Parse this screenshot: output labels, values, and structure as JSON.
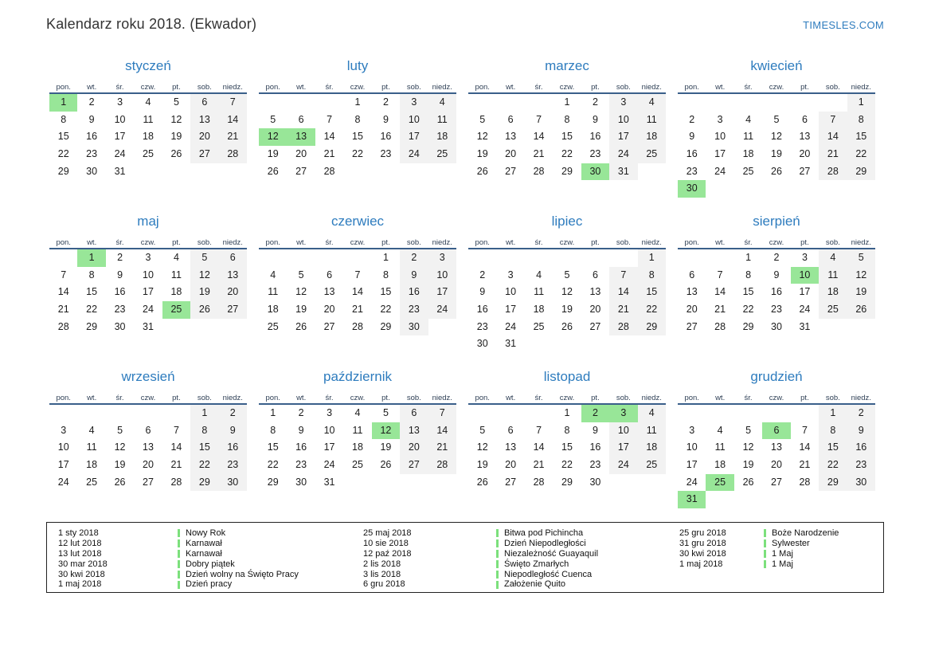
{
  "page": {
    "title": "Kalendarz roku 2018. (Ekwador)",
    "site_link": "TIMESLES.COM"
  },
  "colors": {
    "accent_blue": "#2e7cbe",
    "header_line_blue": "#3a5f8a",
    "weekday_text": "#2e3f55",
    "day_text": "#1c1c1c",
    "weekend_gray": "#f2f2f2",
    "holiday_green": "#98e698",
    "legend_bar_green": "#7ce07c"
  },
  "weekdays": [
    "pon.",
    "wt.",
    "śr.",
    "czw.",
    "pt.",
    "sob.",
    "niedz."
  ],
  "months": [
    {
      "name": "styczeń",
      "key": "january",
      "weeks": [
        [
          1,
          2,
          3,
          4,
          5,
          6,
          7
        ],
        [
          8,
          9,
          10,
          11,
          12,
          13,
          14
        ],
        [
          15,
          16,
          17,
          18,
          19,
          20,
          21
        ],
        [
          22,
          23,
          24,
          25,
          26,
          27,
          28
        ],
        [
          29,
          30,
          31,
          "",
          "",
          "",
          ""
        ]
      ],
      "highlighted": [
        1
      ]
    },
    {
      "name": "luty",
      "key": "february",
      "weeks": [
        [
          "",
          "",
          "",
          1,
          2,
          3,
          4
        ],
        [
          5,
          6,
          7,
          8,
          9,
          10,
          11
        ],
        [
          12,
          13,
          14,
          15,
          16,
          17,
          18
        ],
        [
          19,
          20,
          21,
          22,
          23,
          24,
          25
        ],
        [
          26,
          27,
          28,
          "",
          "",
          "",
          ""
        ]
      ],
      "highlighted": [
        12,
        13
      ]
    },
    {
      "name": "marzec",
      "key": "march",
      "weeks": [
        [
          "",
          "",
          "",
          1,
          2,
          3,
          4
        ],
        [
          5,
          6,
          7,
          8,
          9,
          10,
          11
        ],
        [
          12,
          13,
          14,
          15,
          16,
          17,
          18
        ],
        [
          19,
          20,
          21,
          22,
          23,
          24,
          25
        ],
        [
          26,
          27,
          28,
          29,
          30,
          31,
          ""
        ]
      ],
      "highlighted": [
        30
      ]
    },
    {
      "name": "kwiecień",
      "key": "april",
      "weeks": [
        [
          "",
          "",
          "",
          "",
          "",
          "",
          1
        ],
        [
          2,
          3,
          4,
          5,
          6,
          7,
          8
        ],
        [
          9,
          10,
          11,
          12,
          13,
          14,
          15
        ],
        [
          16,
          17,
          18,
          19,
          20,
          21,
          22
        ],
        [
          23,
          24,
          25,
          26,
          27,
          28,
          29
        ],
        [
          30,
          "",
          "",
          "",
          "",
          "",
          ""
        ]
      ],
      "highlighted": [
        30
      ]
    },
    {
      "name": "maj",
      "key": "may",
      "weeks": [
        [
          "",
          1,
          2,
          3,
          4,
          5,
          6
        ],
        [
          7,
          8,
          9,
          10,
          11,
          12,
          13
        ],
        [
          14,
          15,
          16,
          17,
          18,
          19,
          20
        ],
        [
          21,
          22,
          23,
          24,
          25,
          26,
          27
        ],
        [
          28,
          29,
          30,
          31,
          "",
          "",
          ""
        ]
      ],
      "highlighted": [
        1,
        25
      ]
    },
    {
      "name": "czerwiec",
      "key": "june",
      "weeks": [
        [
          "",
          "",
          "",
          "",
          1,
          2,
          3
        ],
        [
          4,
          5,
          6,
          7,
          8,
          9,
          10
        ],
        [
          11,
          12,
          13,
          14,
          15,
          16,
          17
        ],
        [
          18,
          19,
          20,
          21,
          22,
          23,
          24
        ],
        [
          25,
          26,
          27,
          28,
          29,
          30,
          ""
        ]
      ],
      "highlighted": []
    },
    {
      "name": "lipiec",
      "key": "july",
      "weeks": [
        [
          "",
          "",
          "",
          "",
          "",
          "",
          1
        ],
        [
          2,
          3,
          4,
          5,
          6,
          7,
          8
        ],
        [
          9,
          10,
          11,
          12,
          13,
          14,
          15
        ],
        [
          16,
          17,
          18,
          19,
          20,
          21,
          22
        ],
        [
          23,
          24,
          25,
          26,
          27,
          28,
          29
        ],
        [
          30,
          31,
          "",
          "",
          "",
          "",
          ""
        ]
      ],
      "highlighted": []
    },
    {
      "name": "sierpień",
      "key": "august",
      "weeks": [
        [
          "",
          "",
          1,
          2,
          3,
          4,
          5
        ],
        [
          6,
          7,
          8,
          9,
          10,
          11,
          12
        ],
        [
          13,
          14,
          15,
          16,
          17,
          18,
          19
        ],
        [
          20,
          21,
          22,
          23,
          24,
          25,
          26
        ],
        [
          27,
          28,
          29,
          30,
          31,
          "",
          ""
        ]
      ],
      "highlighted": [
        10
      ]
    },
    {
      "name": "wrzesień",
      "key": "september",
      "weeks": [
        [
          "",
          "",
          "",
          "",
          "",
          1,
          2
        ],
        [
          3,
          4,
          5,
          6,
          7,
          8,
          9
        ],
        [
          10,
          11,
          12,
          13,
          14,
          15,
          16
        ],
        [
          17,
          18,
          19,
          20,
          21,
          22,
          23
        ],
        [
          24,
          25,
          26,
          27,
          28,
          29,
          30
        ]
      ],
      "highlighted": []
    },
    {
      "name": "październik",
      "key": "october",
      "weeks": [
        [
          1,
          2,
          3,
          4,
          5,
          6,
          7
        ],
        [
          8,
          9,
          10,
          11,
          12,
          13,
          14
        ],
        [
          15,
          16,
          17,
          18,
          19,
          20,
          21
        ],
        [
          22,
          23,
          24,
          25,
          26,
          27,
          28
        ],
        [
          29,
          30,
          31,
          "",
          "",
          "",
          ""
        ]
      ],
      "highlighted": [
        12
      ]
    },
    {
      "name": "listopad",
      "key": "november",
      "weeks": [
        [
          "",
          "",
          "",
          1,
          2,
          3,
          4
        ],
        [
          5,
          6,
          7,
          8,
          9,
          10,
          11
        ],
        [
          12,
          13,
          14,
          15,
          16,
          17,
          18
        ],
        [
          19,
          20,
          21,
          22,
          23,
          24,
          25
        ],
        [
          26,
          27,
          28,
          29,
          30,
          "",
          ""
        ]
      ],
      "highlighted": [
        2,
        3
      ]
    },
    {
      "name": "grudzień",
      "key": "december",
      "weeks": [
        [
          "",
          "",
          "",
          "",
          "",
          1,
          2
        ],
        [
          3,
          4,
          5,
          6,
          7,
          8,
          9
        ],
        [
          10,
          11,
          12,
          13,
          14,
          15,
          16
        ],
        [
          17,
          18,
          19,
          20,
          21,
          22,
          23
        ],
        [
          24,
          25,
          26,
          27,
          28,
          29,
          30
        ],
        [
          31,
          "",
          "",
          "",
          "",
          "",
          ""
        ]
      ],
      "highlighted": [
        6,
        25,
        31
      ]
    }
  ],
  "legend": {
    "columns": [
      {
        "entries": [
          {
            "date": "1 sty 2018",
            "name": "Nowy Rok"
          },
          {
            "date": "12 lut 2018",
            "name": "Karnawał"
          },
          {
            "date": "13 lut 2018",
            "name": "Karnawał"
          },
          {
            "date": "30 mar 2018",
            "name": "Dobry piątek"
          },
          {
            "date": "30 kwi 2018",
            "name": "Dzień wolny na Święto Pracy"
          },
          {
            "date": "1 maj 2018",
            "name": "Dzień pracy"
          }
        ]
      },
      {
        "entries": [
          {
            "date": "25 maj 2018",
            "name": "Bitwa pod Pichincha"
          },
          {
            "date": "10 sie 2018",
            "name": "Dzień Niepodległości"
          },
          {
            "date": "12 paź 2018",
            "name": "Niezależność Guayaquil"
          },
          {
            "date": "2 lis 2018",
            "name": "Święto Zmarłych"
          },
          {
            "date": "3 lis 2018",
            "name": "Niepodległość Cuenca"
          },
          {
            "date": "6 gru 2018",
            "name": "Założenie Quito"
          }
        ]
      },
      {
        "entries": [
          {
            "date": "25 gru 2018",
            "name": "Boże Narodzenie"
          },
          {
            "date": "31 gru 2018",
            "name": "Sylwester"
          },
          {
            "date": "30 kwi 2018",
            "name": "1 Maj"
          },
          {
            "date": "1 maj 2018",
            "name": "1 Maj"
          }
        ]
      }
    ]
  }
}
